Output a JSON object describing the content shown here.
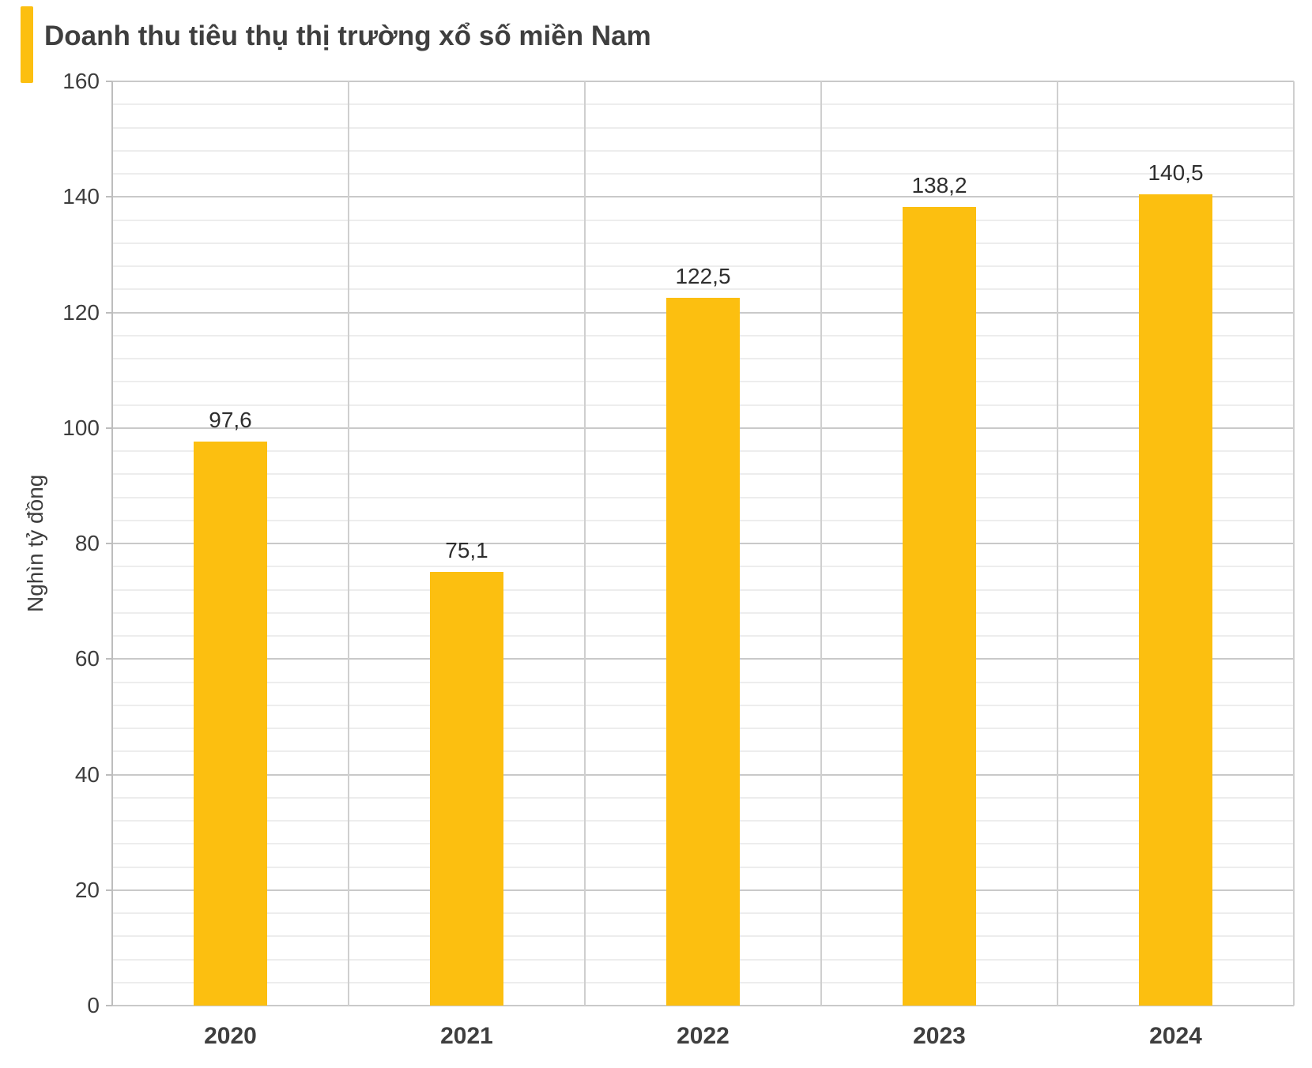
{
  "header": {
    "title": "Doanh thu tiêu thụ thị trường xổ số miền Nam"
  },
  "chart_data": {
    "type": "bar",
    "title": "Doanh thu tiêu thụ thị trường xổ số miền Nam",
    "categories": [
      "2020",
      "2021",
      "2022",
      "2023",
      "2024"
    ],
    "values": [
      97.6,
      75.1,
      122.5,
      138.2,
      140.5
    ],
    "value_labels": [
      "97,6",
      "75,1",
      "122,5",
      "138,2",
      "140,5"
    ],
    "xlabel": "",
    "ylabel": "Nghìn tỷ đồng",
    "ylim": [
      0,
      160
    ],
    "y_major_step": 20,
    "y_minor_step": 4,
    "y_tick_labels": [
      "0",
      "20",
      "40",
      "60",
      "80",
      "100",
      "120",
      "140",
      "160"
    ],
    "grid": true,
    "legend_position": "none",
    "bar_color": "#FCBF10",
    "decimal_separator": ","
  },
  "colors": {
    "accent": "#FCBF10",
    "title_text": "#3F3F3F",
    "axis_text": "#3D3D3D",
    "data_label_text": "#2E2E2E",
    "gridline_major": "#C9C9C9",
    "gridline_minor": "#EDEDED",
    "axis_line": "#BDBDBD",
    "background": "#FFFFFF"
  }
}
